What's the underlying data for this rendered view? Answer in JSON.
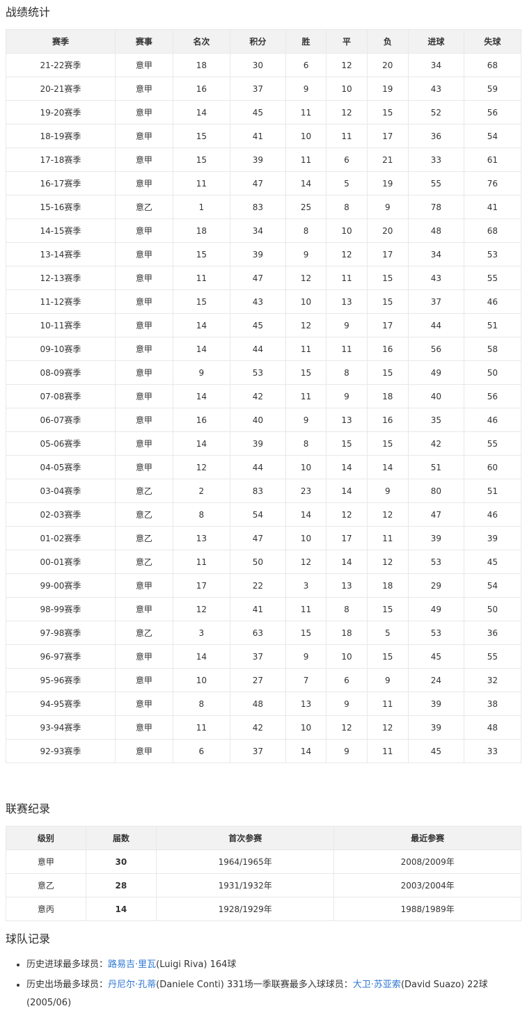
{
  "sections": {
    "stats_title": "战绩统计",
    "league_title": "联赛纪录",
    "team_title": "球队记录"
  },
  "stats_table": {
    "headers": [
      "赛季",
      "赛事",
      "名次",
      "积分",
      "胜",
      "平",
      "负",
      "进球",
      "失球"
    ],
    "rows": [
      [
        "21-22赛季",
        "意甲",
        "18",
        "30",
        "6",
        "12",
        "20",
        "34",
        "68"
      ],
      [
        "20-21赛季",
        "意甲",
        "16",
        "37",
        "9",
        "10",
        "19",
        "43",
        "59"
      ],
      [
        "19-20赛季",
        "意甲",
        "14",
        "45",
        "11",
        "12",
        "15",
        "52",
        "56"
      ],
      [
        "18-19赛季",
        "意甲",
        "15",
        "41",
        "10",
        "11",
        "17",
        "36",
        "54"
      ],
      [
        "17-18赛季",
        "意甲",
        "15",
        "39",
        "11",
        "6",
        "21",
        "33",
        "61"
      ],
      [
        "16-17赛季",
        "意甲",
        "11",
        "47",
        "14",
        "5",
        "19",
        "55",
        "76"
      ],
      [
        "15-16赛季",
        "意乙",
        "1",
        "83",
        "25",
        "8",
        "9",
        "78",
        "41"
      ],
      [
        "14-15赛季",
        "意甲",
        "18",
        "34",
        "8",
        "10",
        "20",
        "48",
        "68"
      ],
      [
        "13-14赛季",
        "意甲",
        "15",
        "39",
        "9",
        "12",
        "17",
        "34",
        "53"
      ],
      [
        "12-13赛季",
        "意甲",
        "11",
        "47",
        "12",
        "11",
        "15",
        "43",
        "55"
      ],
      [
        "11-12赛季",
        "意甲",
        "15",
        "43",
        "10",
        "13",
        "15",
        "37",
        "46"
      ],
      [
        "10-11赛季",
        "意甲",
        "14",
        "45",
        "12",
        "9",
        "17",
        "44",
        "51"
      ],
      [
        "09-10赛季",
        "意甲",
        "14",
        "44",
        "11",
        "11",
        "16",
        "56",
        "58"
      ],
      [
        "08-09赛季",
        "意甲",
        "9",
        "53",
        "15",
        "8",
        "15",
        "49",
        "50"
      ],
      [
        "07-08赛季",
        "意甲",
        "14",
        "42",
        "11",
        "9",
        "18",
        "40",
        "56"
      ],
      [
        "06-07赛季",
        "意甲",
        "16",
        "40",
        "9",
        "13",
        "16",
        "35",
        "46"
      ],
      [
        "05-06赛季",
        "意甲",
        "14",
        "39",
        "8",
        "15",
        "15",
        "42",
        "55"
      ],
      [
        "04-05赛季",
        "意甲",
        "12",
        "44",
        "10",
        "14",
        "14",
        "51",
        "60"
      ],
      [
        "03-04赛季",
        "意乙",
        "2",
        "83",
        "23",
        "14",
        "9",
        "80",
        "51"
      ],
      [
        "02-03赛季",
        "意乙",
        "8",
        "54",
        "14",
        "12",
        "12",
        "47",
        "46"
      ],
      [
        "01-02赛季",
        "意乙",
        "13",
        "47",
        "10",
        "17",
        "11",
        "39",
        "39"
      ],
      [
        "00-01赛季",
        "意乙",
        "11",
        "50",
        "12",
        "14",
        "12",
        "53",
        "45"
      ],
      [
        "99-00赛季",
        "意甲",
        "17",
        "22",
        "3",
        "13",
        "18",
        "29",
        "54"
      ],
      [
        "98-99赛季",
        "意甲",
        "12",
        "41",
        "11",
        "8",
        "15",
        "49",
        "50"
      ],
      [
        "97-98赛季",
        "意乙",
        "3",
        "63",
        "15",
        "18",
        "5",
        "53",
        "36"
      ],
      [
        "96-97赛季",
        "意甲",
        "14",
        "37",
        "9",
        "10",
        "15",
        "45",
        "55"
      ],
      [
        "95-96赛季",
        "意甲",
        "10",
        "27",
        "7",
        "6",
        "9",
        "24",
        "32"
      ],
      [
        "94-95赛季",
        "意甲",
        "8",
        "48",
        "13",
        "9",
        "11",
        "39",
        "38"
      ],
      [
        "93-94赛季",
        "意甲",
        "11",
        "42",
        "10",
        "12",
        "12",
        "39",
        "48"
      ],
      [
        "92-93赛季",
        "意甲",
        "6",
        "37",
        "14",
        "9",
        "11",
        "45",
        "33"
      ]
    ]
  },
  "league_table": {
    "headers": [
      "级别",
      "届数",
      "首次参赛",
      "最近参赛"
    ],
    "rows": [
      [
        "意甲",
        "30",
        "1964/1965年",
        "2008/2009年"
      ],
      [
        "意乙",
        "28",
        "1931/1932年",
        "2003/2004年"
      ],
      [
        "意丙",
        "14",
        "1928/1929年",
        "1988/1989年"
      ]
    ]
  },
  "team_records": {
    "items": [
      [
        {
          "text": "历史进球最多球员：",
          "link": false
        },
        {
          "text": "路易吉·里瓦",
          "link": true
        },
        {
          "text": "(Luigi Riva) 164球",
          "link": false
        }
      ],
      [
        {
          "text": "历史出场最多球员：",
          "link": false
        },
        {
          "text": "丹尼尔·孔蒂",
          "link": true
        },
        {
          "text": "(Daniele Conti) 331场一季联赛最多入球球员：",
          "link": false
        },
        {
          "text": "大卫·苏亚索",
          "link": true
        },
        {
          "text": "(David Suazo) 22球(2005/06)",
          "link": false
        }
      ]
    ]
  },
  "colors": {
    "link": "#2d77d3",
    "header_bg": "#f2f2f2",
    "border": "#e8e8e8",
    "text": "#333333"
  }
}
